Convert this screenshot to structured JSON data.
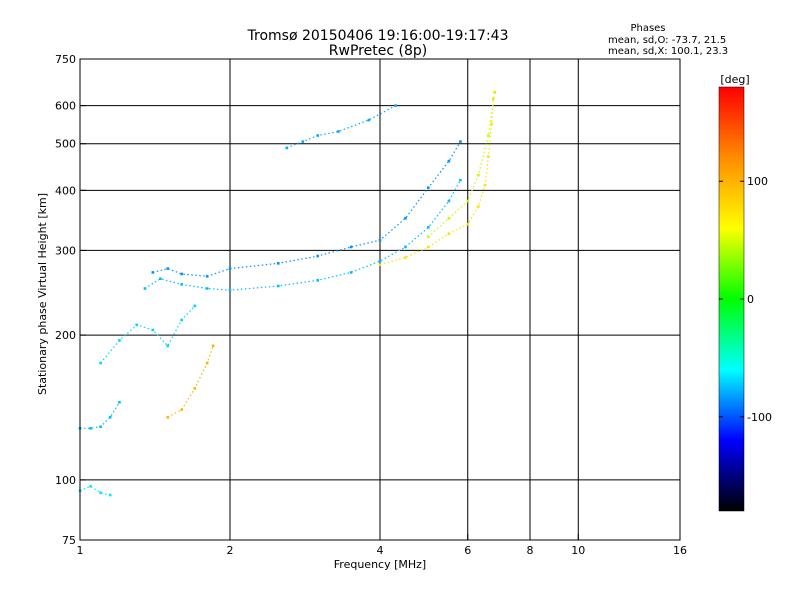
{
  "chart_data": {
    "type": "scatter",
    "title": "Tromsø 20150406 19:16:00-19:17:43",
    "subtitle": "RwPretec (8p)",
    "xlabel": "Frequency [MHz]",
    "ylabel": "Stationary phase Virtual Height [km]",
    "x_scale": "log",
    "y_scale": "log",
    "xlim": [
      1,
      16
    ],
    "ylim": [
      75,
      750
    ],
    "x_ticks": [
      1,
      2,
      4,
      6,
      8,
      10,
      16
    ],
    "y_ticks": [
      75,
      100,
      200,
      300,
      400,
      500,
      600,
      750
    ],
    "grid": true,
    "stats": {
      "heading": "Phases",
      "line_o": "mean, sd,O: -73.7, 21.5",
      "line_x": "mean, sd,X: 100.1, 23.3"
    },
    "colorbar": {
      "label": "[deg]",
      "ticks": [
        "100",
        "0",
        "-100"
      ],
      "tick_values": [
        100,
        0,
        -100
      ],
      "range": [
        -180,
        180
      ],
      "colors_top_to_bottom": [
        "#ff0000",
        "#ff8c00",
        "#ffff00",
        "#00ff00",
        "#00ffff",
        "#0000ff",
        "#000000"
      ]
    },
    "traces": [
      {
        "name": "",
        "color_phase": -75,
        "points": [
          [
            1.0,
            128
          ],
          [
            1.05,
            128
          ],
          [
            1.1,
            129
          ],
          [
            1.15,
            135
          ],
          [
            1.2,
            145
          ]
        ]
      },
      {
        "name": "",
        "color_phase": -70,
        "points": [
          [
            1.1,
            175
          ],
          [
            1.2,
            195
          ],
          [
            1.3,
            210
          ],
          [
            1.4,
            205
          ],
          [
            1.5,
            190
          ],
          [
            1.6,
            215
          ],
          [
            1.7,
            230
          ]
        ]
      },
      {
        "name": "",
        "color_phase": -75,
        "points": [
          [
            1.35,
            250
          ],
          [
            1.45,
            262
          ],
          [
            1.6,
            255
          ],
          [
            1.8,
            250
          ],
          [
            2.0,
            248
          ],
          [
            2.5,
            253
          ],
          [
            3.0,
            260
          ],
          [
            3.5,
            270
          ],
          [
            4.0,
            285
          ],
          [
            4.5,
            305
          ],
          [
            5.0,
            335
          ],
          [
            5.5,
            380
          ],
          [
            5.8,
            420
          ]
        ]
      },
      {
        "name": "",
        "color_phase": -85,
        "points": [
          [
            1.4,
            270
          ],
          [
            1.5,
            275
          ],
          [
            1.6,
            268
          ],
          [
            1.8,
            265
          ],
          [
            2.0,
            275
          ],
          [
            2.5,
            282
          ],
          [
            3.0,
            292
          ],
          [
            3.5,
            305
          ],
          [
            4.0,
            315
          ],
          [
            4.5,
            350
          ],
          [
            5.0,
            405
          ],
          [
            5.5,
            460
          ],
          [
            5.8,
            505
          ]
        ]
      },
      {
        "name": "",
        "color_phase": 100,
        "points": [
          [
            1.5,
            135
          ],
          [
            1.6,
            140
          ],
          [
            1.7,
            155
          ],
          [
            1.8,
            175
          ],
          [
            1.85,
            190
          ]
        ]
      },
      {
        "name": "",
        "color_phase": 75,
        "points": [
          [
            4.0,
            280
          ],
          [
            4.5,
            290
          ],
          [
            5.0,
            305
          ],
          [
            5.5,
            325
          ],
          [
            6.0,
            340
          ],
          [
            6.3,
            370
          ],
          [
            6.5,
            410
          ],
          [
            6.6,
            470
          ],
          [
            6.7,
            550
          ],
          [
            6.75,
            620
          ]
        ]
      },
      {
        "name": "",
        "color_phase": 45,
        "points": [
          [
            5.0,
            320
          ],
          [
            5.5,
            350
          ],
          [
            6.0,
            380
          ],
          [
            6.3,
            430
          ],
          [
            6.6,
            520
          ],
          [
            6.8,
            640
          ]
        ]
      },
      {
        "name": "",
        "color_phase": -80,
        "points": [
          [
            2.6,
            490
          ],
          [
            2.8,
            505
          ],
          [
            3.0,
            520
          ],
          [
            3.3,
            530
          ],
          [
            3.8,
            560
          ],
          [
            4.3,
            600
          ]
        ]
      },
      {
        "name": "",
        "color_phase": -65,
        "points": [
          [
            1.0,
            95
          ],
          [
            1.05,
            97
          ],
          [
            1.1,
            94
          ],
          [
            1.15,
            93
          ]
        ]
      }
    ]
  }
}
